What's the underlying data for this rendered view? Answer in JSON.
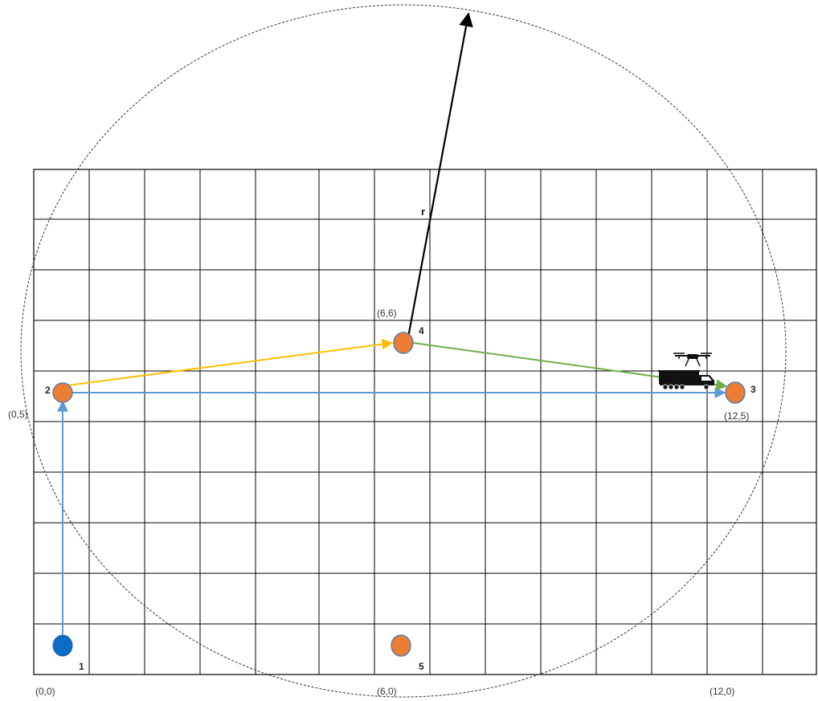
{
  "diagram": {
    "grid": {
      "columns": 14,
      "rows": 10
    },
    "radius_label": "r",
    "colors": {
      "node_start": "#0A6CC4",
      "node": "#ED7D31",
      "node_outline": "#5B7FB0",
      "blue_arrow": "#5B9BD5",
      "yellow_arrow": "#FFC000",
      "green_arrow": "#70AD47",
      "radius_arrow": "#000000",
      "circle": "#333333",
      "grid": "#000000"
    },
    "nodes": [
      {
        "id": "1",
        "type": "start"
      },
      {
        "id": "2",
        "type": "customer"
      },
      {
        "id": "3",
        "type": "customer"
      },
      {
        "id": "4",
        "type": "customer"
      },
      {
        "id": "5",
        "type": "customer"
      }
    ],
    "coordinate_labels": [
      "(0,0)",
      "(6,0)",
      "(12,0)",
      "(0,5)",
      "(12,5)",
      "(6,6)"
    ],
    "routes": [
      {
        "from": "1",
        "to": "2",
        "color": "blue"
      },
      {
        "from": "2",
        "to": "3",
        "color": "blue"
      },
      {
        "from": "2",
        "to": "4",
        "color": "yellow"
      },
      {
        "from": "4",
        "to": "3",
        "color": "green"
      }
    ],
    "icons": [
      "truck-icon",
      "drone-icon"
    ]
  }
}
